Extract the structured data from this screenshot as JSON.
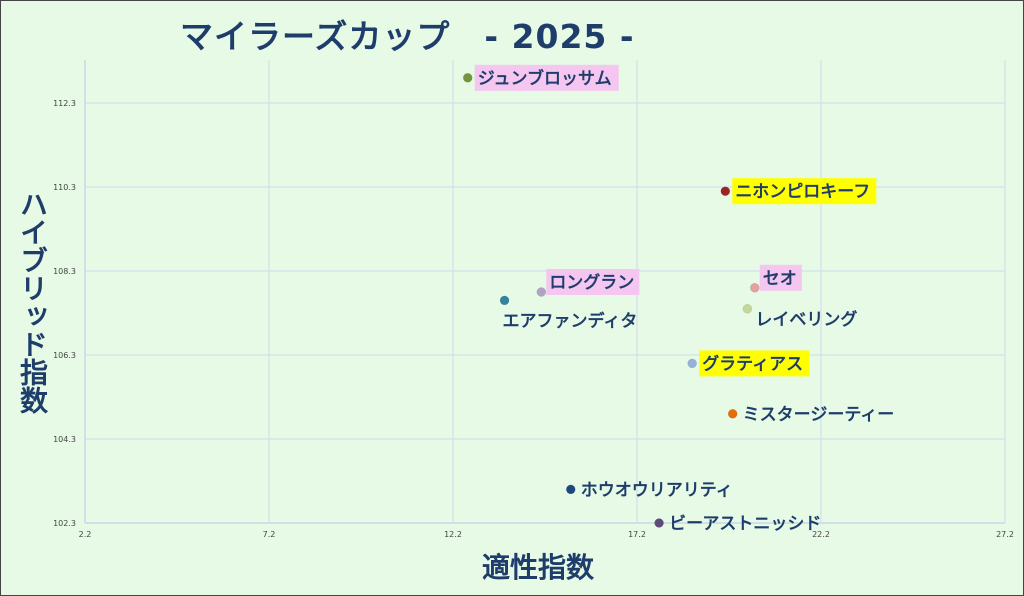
{
  "chart_data": {
    "type": "scatter",
    "title": "マイラーズカップ　- 2025 -",
    "xlabel": "適性指数",
    "ylabel": "ハイブリッド指数",
    "xlim": [
      2.2,
      27.2
    ],
    "ylim": [
      102.3,
      113.3
    ],
    "xticks": [
      "2.2",
      "7.2",
      "12.2",
      "17.2",
      "22.2",
      "27.2"
    ],
    "yticks": [
      "102.3",
      "104.3",
      "106.3",
      "108.3",
      "110.3",
      "112.3"
    ],
    "grid": true,
    "points": [
      {
        "label": "ジュンブロッサム",
        "x": 12.6,
        "y": 112.9,
        "color": "#77933c",
        "highlight": "#f4c6f0"
      },
      {
        "label": "ニホンピロキーフ",
        "x": 19.6,
        "y": 110.2,
        "color": "#9b2424",
        "highlight": "#ffff00"
      },
      {
        "label": "セオ",
        "x": 20.4,
        "y": 107.9,
        "color": "#e6a0a0",
        "highlight": "#f4c6f0"
      },
      {
        "label": "レイベリング",
        "x": 20.2,
        "y": 107.4,
        "color": "#c4d79b",
        "highlight": ""
      },
      {
        "label": "ロングラン",
        "x": 14.6,
        "y": 107.8,
        "color": "#b3a2c7",
        "highlight": "#f4c6f0"
      },
      {
        "label": "エアファンディタ",
        "x": 13.6,
        "y": 107.6,
        "color": "#31859c",
        "highlight": ""
      },
      {
        "label": "グラティアス",
        "x": 18.7,
        "y": 106.1,
        "color": "#95b3d7",
        "highlight": "#ffff00"
      },
      {
        "label": "ミスタージーティー",
        "x": 19.8,
        "y": 104.9,
        "color": "#e46c0a",
        "highlight": ""
      },
      {
        "label": "ホウオウリアリティ",
        "x": 15.4,
        "y": 103.1,
        "color": "#1f497d",
        "highlight": ""
      },
      {
        "label": "ビーアストニッシド",
        "x": 17.8,
        "y": 102.3,
        "color": "#604a7b",
        "highlight": ""
      }
    ]
  }
}
